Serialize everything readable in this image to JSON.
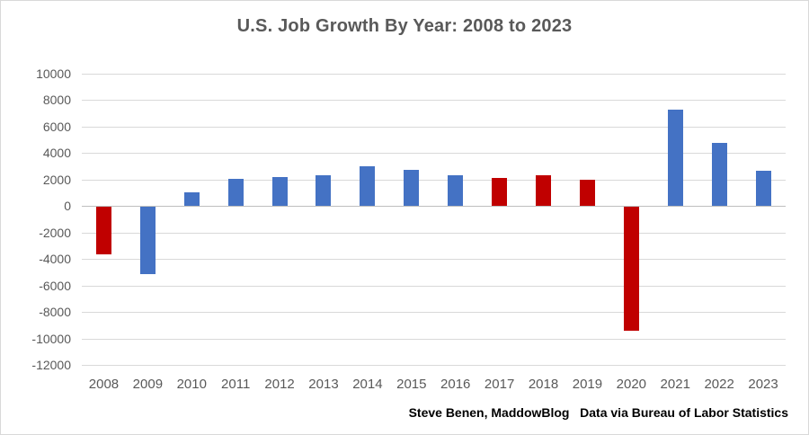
{
  "chart": {
    "attribution": "Steve Benen, MaddowBlog   Data via Bureau of Labor Statistics"
  },
  "chart_data": {
    "type": "bar",
    "title": "U.S. Job Growth By Year: 2008 to 2023",
    "categories": [
      "2008",
      "2009",
      "2010",
      "2011",
      "2012",
      "2013",
      "2014",
      "2015",
      "2016",
      "2017",
      "2018",
      "2019",
      "2020",
      "2021",
      "2022",
      "2023"
    ],
    "values": [
      -3600,
      -5050,
      1020,
      2080,
      2190,
      2300,
      3000,
      2710,
      2320,
      2150,
      2350,
      2000,
      -9370,
      7270,
      4790,
      2700
    ],
    "bar_colors": [
      "#C00000",
      "#4472C4",
      "#4472C4",
      "#4472C4",
      "#4472C4",
      "#4472C4",
      "#4472C4",
      "#4472C4",
      "#4472C4",
      "#C00000",
      "#C00000",
      "#C00000",
      "#C00000",
      "#4472C4",
      "#4472C4",
      "#4472C4"
    ],
    "xlabel": "",
    "ylabel": "",
    "ylim": [
      -12000,
      10000
    ],
    "ytick_step": 2000,
    "yticks": [
      10000,
      8000,
      6000,
      4000,
      2000,
      0,
      -2000,
      -4000,
      -6000,
      -8000,
      -10000,
      -12000
    ],
    "grid": true,
    "legend": "none",
    "colors": {
      "bar_blue": "#4472C4",
      "bar_red": "#C00000",
      "gridline": "#D9D9D9",
      "zero_axis": "#BFBFBF",
      "tick_label": "#595959",
      "title": "#595959",
      "attribution": "#000000"
    }
  }
}
